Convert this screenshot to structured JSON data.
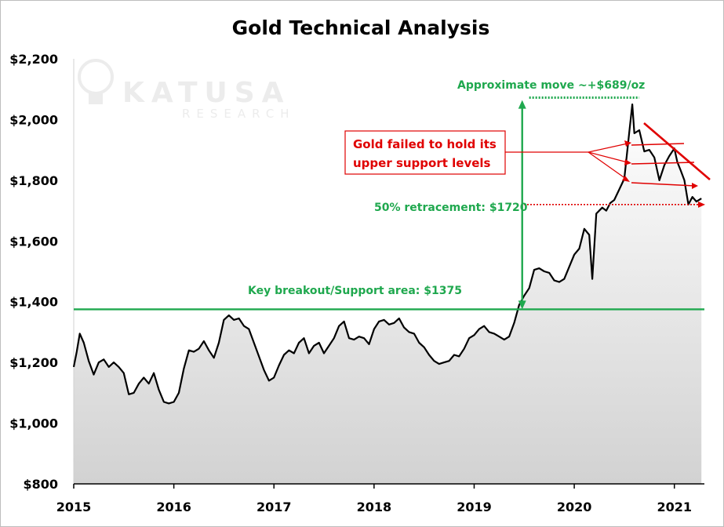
{
  "chart_data": {
    "type": "line",
    "title": "Gold Technical Analysis",
    "xlabel": "",
    "ylabel": "",
    "xlim": [
      2015.0,
      2021.3
    ],
    "ylim": [
      800,
      2200
    ],
    "y_ticks": [
      800,
      1000,
      1200,
      1400,
      1600,
      1800,
      2000,
      2200
    ],
    "y_tick_labels": [
      "$800",
      "$1,000",
      "$1,200",
      "$1,400",
      "$1,600",
      "$1,800",
      "$2,000",
      "$2,200"
    ],
    "x_ticks": [
      2015,
      2016,
      2017,
      2018,
      2019,
      2020,
      2021
    ],
    "x_tick_labels": [
      "2015",
      "2016",
      "2017",
      "2018",
      "2019",
      "2020",
      "2021"
    ],
    "fill_under_line": true,
    "series": [
      {
        "name": "Gold price",
        "points": [
          [
            2015.0,
            1185
          ],
          [
            2015.03,
            1235
          ],
          [
            2015.06,
            1295
          ],
          [
            2015.1,
            1265
          ],
          [
            2015.15,
            1205
          ],
          [
            2015.2,
            1160
          ],
          [
            2015.25,
            1200
          ],
          [
            2015.3,
            1210
          ],
          [
            2015.35,
            1185
          ],
          [
            2015.4,
            1200
          ],
          [
            2015.45,
            1185
          ],
          [
            2015.5,
            1165
          ],
          [
            2015.55,
            1095
          ],
          [
            2015.6,
            1100
          ],
          [
            2015.65,
            1130
          ],
          [
            2015.7,
            1150
          ],
          [
            2015.75,
            1130
          ],
          [
            2015.8,
            1165
          ],
          [
            2015.85,
            1110
          ],
          [
            2015.9,
            1070
          ],
          [
            2015.95,
            1065
          ],
          [
            2016.0,
            1070
          ],
          [
            2016.05,
            1100
          ],
          [
            2016.1,
            1180
          ],
          [
            2016.15,
            1240
          ],
          [
            2016.2,
            1235
          ],
          [
            2016.25,
            1245
          ],
          [
            2016.3,
            1270
          ],
          [
            2016.35,
            1240
          ],
          [
            2016.4,
            1215
          ],
          [
            2016.45,
            1265
          ],
          [
            2016.5,
            1340
          ],
          [
            2016.55,
            1355
          ],
          [
            2016.6,
            1340
          ],
          [
            2016.65,
            1345
          ],
          [
            2016.7,
            1320
          ],
          [
            2016.75,
            1310
          ],
          [
            2016.8,
            1265
          ],
          [
            2016.85,
            1220
          ],
          [
            2016.9,
            1175
          ],
          [
            2016.95,
            1140
          ],
          [
            2017.0,
            1150
          ],
          [
            2017.05,
            1190
          ],
          [
            2017.1,
            1225
          ],
          [
            2017.15,
            1240
          ],
          [
            2017.2,
            1230
          ],
          [
            2017.25,
            1265
          ],
          [
            2017.3,
            1280
          ],
          [
            2017.35,
            1230
          ],
          [
            2017.4,
            1255
          ],
          [
            2017.45,
            1265
          ],
          [
            2017.5,
            1230
          ],
          [
            2017.55,
            1255
          ],
          [
            2017.6,
            1280
          ],
          [
            2017.65,
            1320
          ],
          [
            2017.7,
            1335
          ],
          [
            2017.75,
            1280
          ],
          [
            2017.8,
            1275
          ],
          [
            2017.85,
            1285
          ],
          [
            2017.9,
            1280
          ],
          [
            2017.95,
            1260
          ],
          [
            2018.0,
            1310
          ],
          [
            2018.05,
            1335
          ],
          [
            2018.1,
            1340
          ],
          [
            2018.15,
            1325
          ],
          [
            2018.2,
            1330
          ],
          [
            2018.25,
            1345
          ],
          [
            2018.3,
            1315
          ],
          [
            2018.35,
            1300
          ],
          [
            2018.4,
            1295
          ],
          [
            2018.45,
            1265
          ],
          [
            2018.5,
            1250
          ],
          [
            2018.55,
            1225
          ],
          [
            2018.6,
            1205
          ],
          [
            2018.65,
            1195
          ],
          [
            2018.7,
            1200
          ],
          [
            2018.75,
            1205
          ],
          [
            2018.8,
            1225
          ],
          [
            2018.85,
            1220
          ],
          [
            2018.9,
            1245
          ],
          [
            2018.95,
            1280
          ],
          [
            2019.0,
            1290
          ],
          [
            2019.05,
            1310
          ],
          [
            2019.1,
            1320
          ],
          [
            2019.15,
            1300
          ],
          [
            2019.2,
            1295
          ],
          [
            2019.25,
            1285
          ],
          [
            2019.3,
            1275
          ],
          [
            2019.35,
            1285
          ],
          [
            2019.4,
            1330
          ],
          [
            2019.45,
            1390
          ],
          [
            2019.5,
            1420
          ],
          [
            2019.55,
            1445
          ],
          [
            2019.6,
            1505
          ],
          [
            2019.65,
            1510
          ],
          [
            2019.7,
            1500
          ],
          [
            2019.75,
            1495
          ],
          [
            2019.8,
            1470
          ],
          [
            2019.85,
            1465
          ],
          [
            2019.9,
            1475
          ],
          [
            2019.95,
            1515
          ],
          [
            2020.0,
            1555
          ],
          [
            2020.05,
            1575
          ],
          [
            2020.1,
            1640
          ],
          [
            2020.15,
            1620
          ],
          [
            2020.18,
            1475
          ],
          [
            2020.22,
            1690
          ],
          [
            2020.28,
            1710
          ],
          [
            2020.32,
            1700
          ],
          [
            2020.36,
            1725
          ],
          [
            2020.4,
            1735
          ],
          [
            2020.45,
            1770
          ],
          [
            2020.5,
            1805
          ],
          [
            2020.55,
            1960
          ],
          [
            2020.58,
            2050
          ],
          [
            2020.6,
            1955
          ],
          [
            2020.65,
            1965
          ],
          [
            2020.7,
            1895
          ],
          [
            2020.75,
            1900
          ],
          [
            2020.8,
            1875
          ],
          [
            2020.85,
            1800
          ],
          [
            2020.9,
            1850
          ],
          [
            2020.95,
            1880
          ],
          [
            2021.0,
            1905
          ],
          [
            2021.03,
            1860
          ],
          [
            2021.06,
            1835
          ],
          [
            2021.1,
            1800
          ],
          [
            2021.14,
            1720
          ],
          [
            2021.18,
            1745
          ],
          [
            2021.22,
            1730
          ],
          [
            2021.27,
            1740
          ]
        ]
      }
    ],
    "reference_lines": [
      {
        "label": "Key breakout/Support area: $1375",
        "value": 1375
      }
    ],
    "annotations": [
      {
        "text": "Approximate move ~+$689/oz"
      },
      {
        "text": "50% retracement: $1720",
        "value": 1720
      },
      {
        "text_lines": [
          "Gold failed to hold its",
          "upper support levels"
        ]
      }
    ]
  },
  "watermark": {
    "brand": "KATUSA",
    "sub": "RESEARCH"
  },
  "colors": {
    "green": "#1fa84e",
    "red": "#e00000",
    "line": "#000000",
    "fill_top": "#ffffff",
    "fill_bottom": "#d2d2d2"
  }
}
